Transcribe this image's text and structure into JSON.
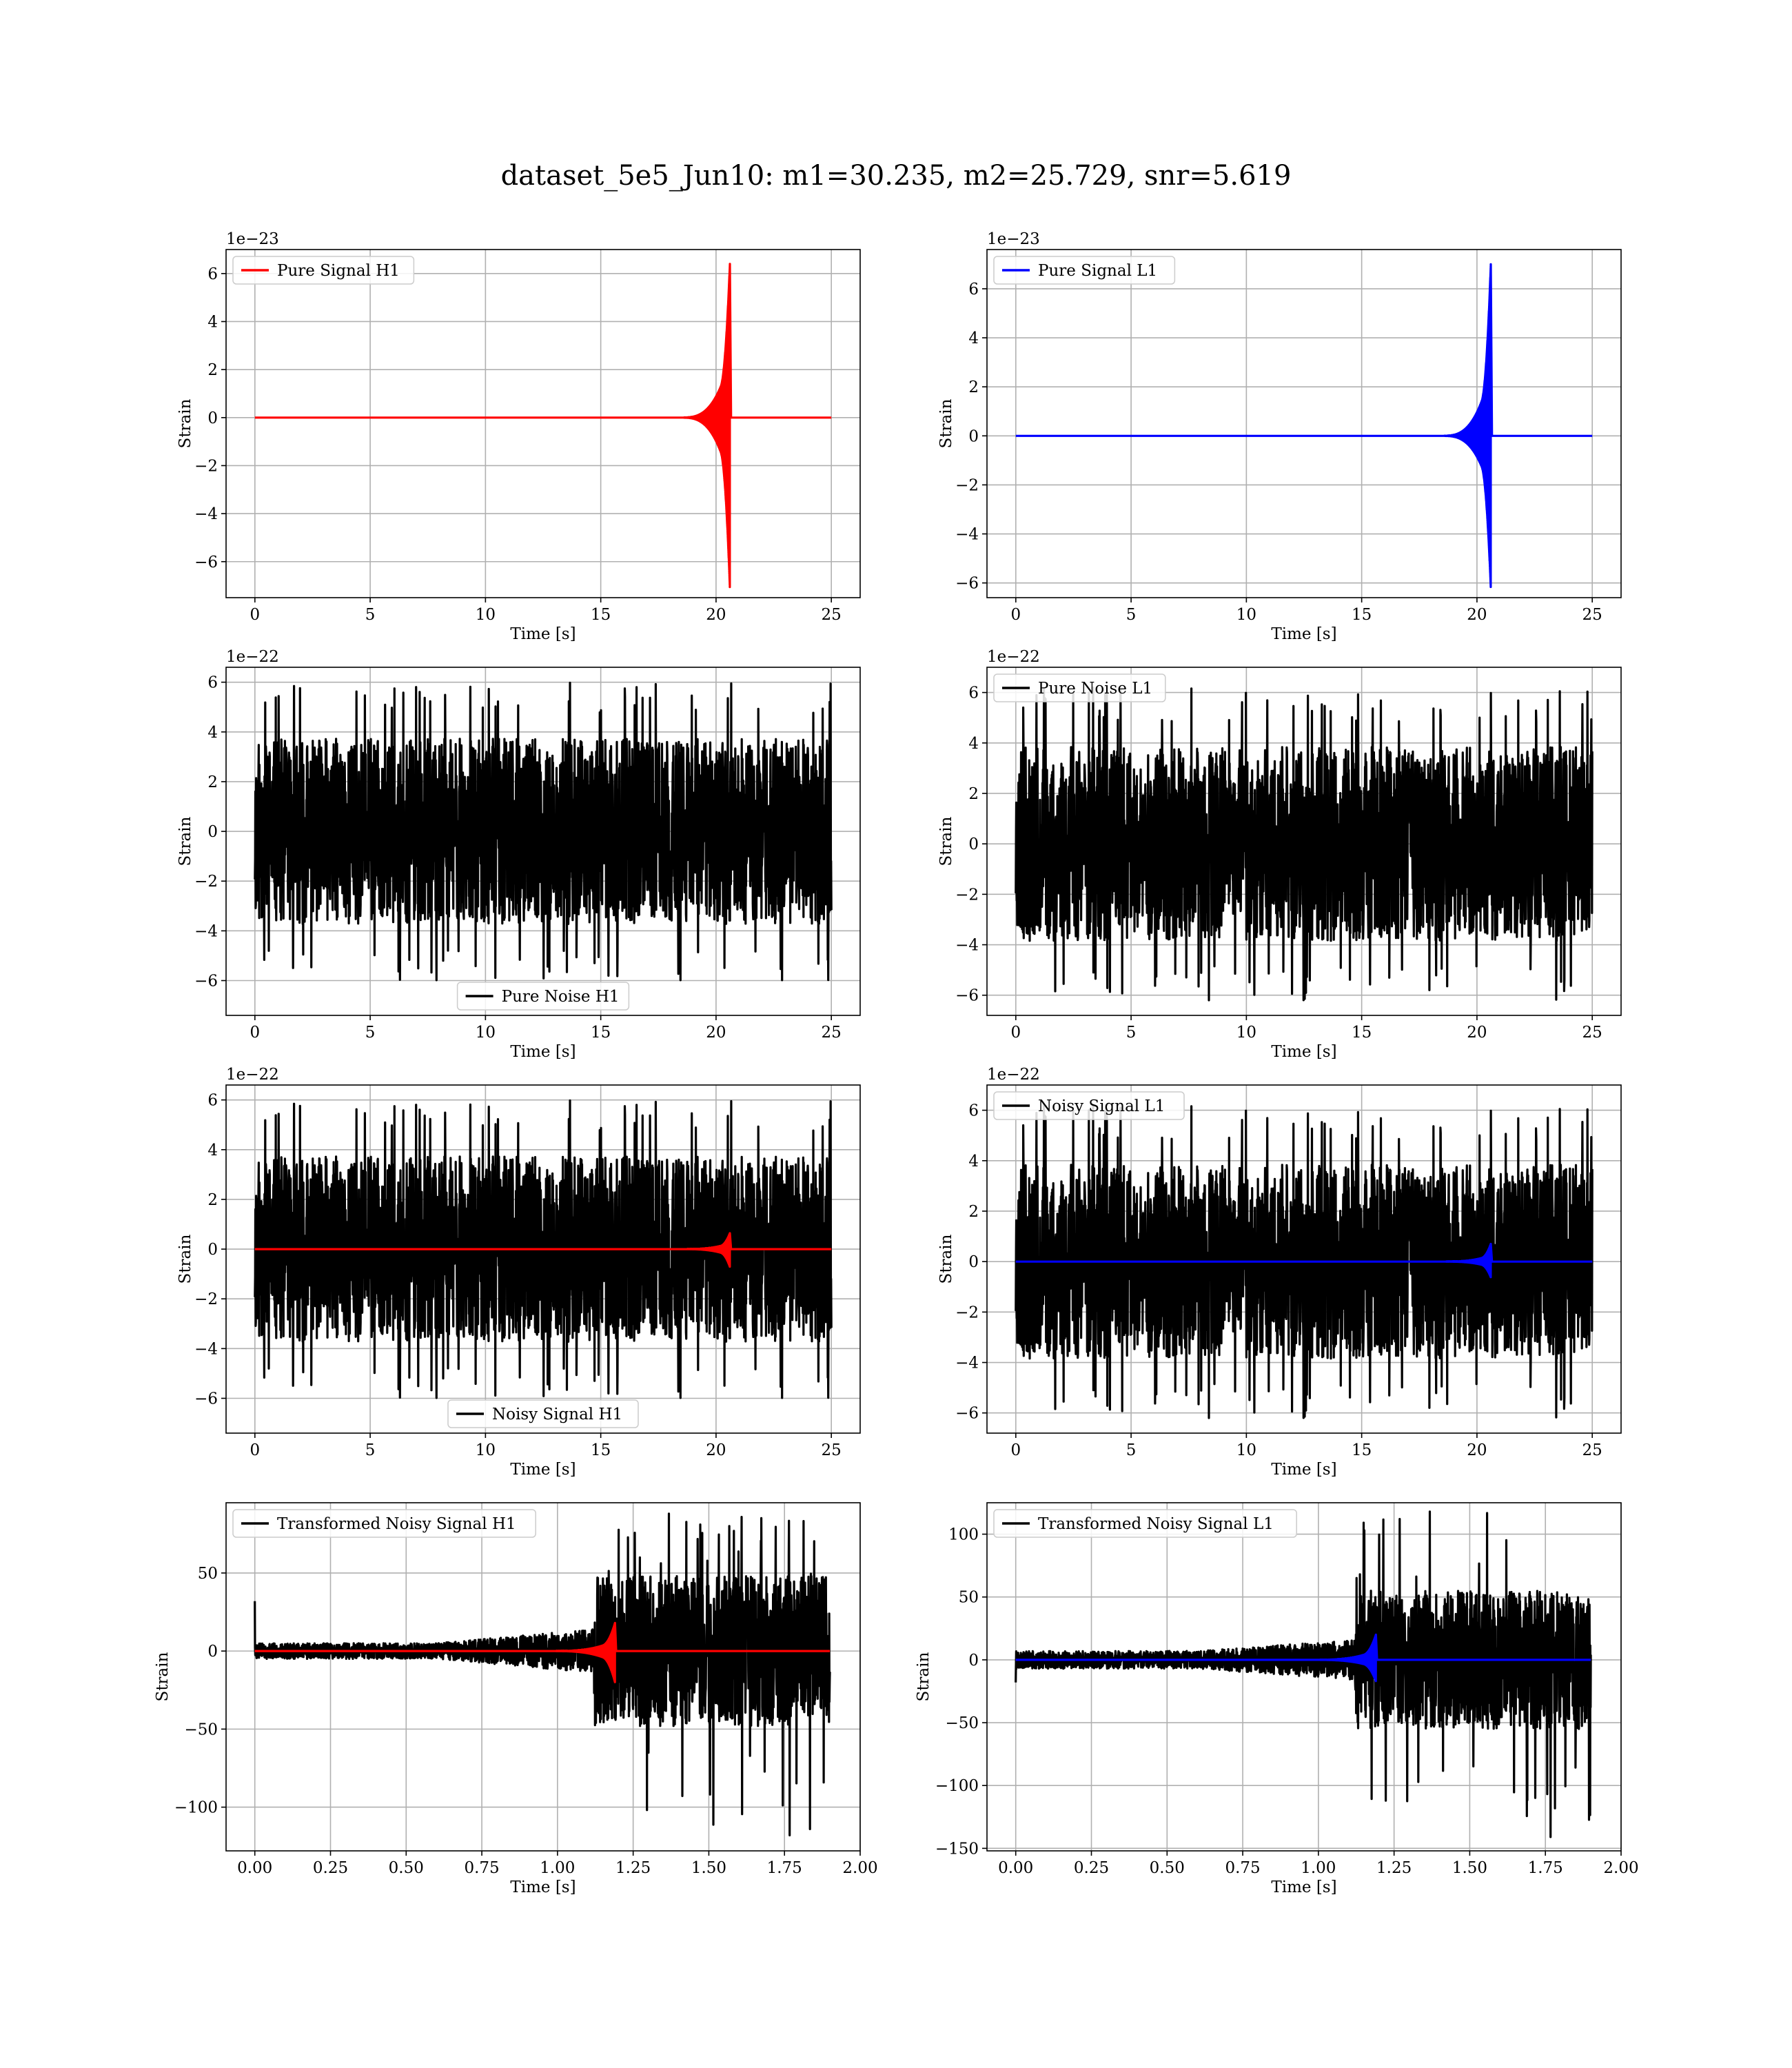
{
  "figure_title": "dataset_5e5_Jun10: m1=30.235, m2=25.729, snr=5.619",
  "colors": {
    "signal_h1": "#ff0000",
    "signal_l1": "#0000ff",
    "noise": "#000000",
    "grid": "#b0b0b0"
  },
  "chart_data": [
    {
      "id": "pure-signal-h1",
      "type": "line",
      "title": "",
      "xlabel": "Time [s]",
      "ylabel": "Strain",
      "offset_text": "1e−23",
      "xlim": [
        -1.25,
        26.25
      ],
      "ylim": [
        -7.5,
        7.0
      ],
      "xticks": [
        0,
        5,
        10,
        15,
        20,
        25
      ],
      "xtick_labels": [
        "0",
        "5",
        "10",
        "15",
        "20",
        "25"
      ],
      "yticks": [
        -6,
        -4,
        -2,
        0,
        2,
        4,
        6
      ],
      "ytick_labels": [
        "−6",
        "−4",
        "−2",
        "0",
        "2",
        "4",
        "6"
      ],
      "grid": true,
      "legend_position": "upper left",
      "series": [
        {
          "name": "Pure Signal H1",
          "color": "#ff0000",
          "kind": "chirp",
          "t_start": 0,
          "t_end": 25,
          "t_merge": 20.6,
          "peak_pos": 6.4,
          "peak_neg": -7.1,
          "width": 2.2
        }
      ]
    },
    {
      "id": "pure-signal-l1",
      "type": "line",
      "title": "",
      "xlabel": "Time [s]",
      "ylabel": "Strain",
      "offset_text": "1e−23",
      "xlim": [
        -1.25,
        26.25
      ],
      "ylim": [
        -6.6,
        7.6
      ],
      "xticks": [
        0,
        5,
        10,
        15,
        20,
        25
      ],
      "xtick_labels": [
        "0",
        "5",
        "10",
        "15",
        "20",
        "25"
      ],
      "yticks": [
        -6,
        -4,
        -2,
        0,
        2,
        4,
        6
      ],
      "ytick_labels": [
        "−6",
        "−4",
        "−2",
        "0",
        "2",
        "4",
        "6"
      ],
      "grid": true,
      "legend_position": "upper left",
      "series": [
        {
          "name": "Pure Signal L1",
          "color": "#0000ff",
          "kind": "chirp",
          "t_start": 0,
          "t_end": 25,
          "t_merge": 20.6,
          "peak_pos": 7.0,
          "peak_neg": -6.2,
          "width": 2.2
        }
      ]
    },
    {
      "id": "pure-noise-h1",
      "type": "line",
      "title": "",
      "xlabel": "Time [s]",
      "ylabel": "Strain",
      "offset_text": "1e−22",
      "xlim": [
        -1.25,
        26.25
      ],
      "ylim": [
        -7.4,
        6.6
      ],
      "xticks": [
        0,
        5,
        10,
        15,
        20,
        25
      ],
      "xtick_labels": [
        "0",
        "5",
        "10",
        "15",
        "20",
        "25"
      ],
      "yticks": [
        -6,
        -4,
        -2,
        0,
        2,
        4,
        6
      ],
      "ytick_labels": [
        "−6",
        "−4",
        "−2",
        "0",
        "2",
        "4",
        "6"
      ],
      "grid": true,
      "legend_position": "lower center",
      "series": [
        {
          "name": "Pure Noise H1",
          "color": "#000000",
          "kind": "noise",
          "t_start": 0,
          "t_end": 25,
          "amplitude": 6.0,
          "seed": 11
        }
      ]
    },
    {
      "id": "pure-noise-l1",
      "type": "line",
      "title": "",
      "xlabel": "Time [s]",
      "ylabel": "Strain",
      "offset_text": "1e−22",
      "xlim": [
        -1.25,
        26.25
      ],
      "ylim": [
        -6.8,
        7.0
      ],
      "xticks": [
        0,
        5,
        10,
        15,
        20,
        25
      ],
      "xtick_labels": [
        "0",
        "5",
        "10",
        "15",
        "20",
        "25"
      ],
      "yticks": [
        -6,
        -4,
        -2,
        0,
        2,
        4,
        6
      ],
      "ytick_labels": [
        "−6",
        "−4",
        "−2",
        "0",
        "2",
        "4",
        "6"
      ],
      "grid": true,
      "legend_position": "upper left",
      "series": [
        {
          "name": "Pure Noise L1",
          "color": "#000000",
          "kind": "noise",
          "t_start": 0,
          "t_end": 25,
          "amplitude": 6.2,
          "seed": 23
        }
      ]
    },
    {
      "id": "noisy-signal-h1",
      "type": "line",
      "title": "",
      "xlabel": "Time [s]",
      "ylabel": "Strain",
      "offset_text": "1e−22",
      "xlim": [
        -1.25,
        26.25
      ],
      "ylim": [
        -7.4,
        6.6
      ],
      "xticks": [
        0,
        5,
        10,
        15,
        20,
        25
      ],
      "xtick_labels": [
        "0",
        "5",
        "10",
        "15",
        "20",
        "25"
      ],
      "yticks": [
        -6,
        -4,
        -2,
        0,
        2,
        4,
        6
      ],
      "ytick_labels": [
        "−6",
        "−4",
        "−2",
        "0",
        "2",
        "4",
        "6"
      ],
      "grid": true,
      "legend_position": "lower center",
      "series": [
        {
          "name": "Noisy Signal H1",
          "color": "#000000",
          "kind": "noise",
          "t_start": 0,
          "t_end": 25,
          "amplitude": 6.0,
          "seed": 11
        },
        {
          "name": "",
          "color": "#ff0000",
          "kind": "chirp",
          "t_start": 0,
          "t_end": 25,
          "t_merge": 20.6,
          "peak_pos": 0.64,
          "peak_neg": -0.71,
          "width": 2.2
        }
      ]
    },
    {
      "id": "noisy-signal-l1",
      "type": "line",
      "title": "",
      "xlabel": "Time [s]",
      "ylabel": "Strain",
      "offset_text": "1e−22",
      "xlim": [
        -1.25,
        26.25
      ],
      "ylim": [
        -6.8,
        7.0
      ],
      "xticks": [
        0,
        5,
        10,
        15,
        20,
        25
      ],
      "xtick_labels": [
        "0",
        "5",
        "10",
        "15",
        "20",
        "25"
      ],
      "yticks": [
        -6,
        -4,
        -2,
        0,
        2,
        4,
        6
      ],
      "ytick_labels": [
        "−6",
        "−4",
        "−2",
        "0",
        "2",
        "4",
        "6"
      ],
      "grid": true,
      "legend_position": "upper left",
      "series": [
        {
          "name": "Noisy Signal L1",
          "color": "#000000",
          "kind": "noise",
          "t_start": 0,
          "t_end": 25,
          "amplitude": 6.2,
          "seed": 23
        },
        {
          "name": "",
          "color": "#0000ff",
          "kind": "chirp",
          "t_start": 0,
          "t_end": 25,
          "t_merge": 20.6,
          "peak_pos": 0.7,
          "peak_neg": -0.62,
          "width": 2.2
        }
      ]
    },
    {
      "id": "transformed-noisy-signal-h1",
      "type": "line",
      "title": "",
      "xlabel": "Time [s]",
      "ylabel": "Strain",
      "offset_text": "",
      "xlim": [
        -0.095,
        2.0
      ],
      "ylim": [
        -128,
        95
      ],
      "xticks": [
        0,
        0.25,
        0.5,
        0.75,
        1.0,
        1.25,
        1.5,
        1.75,
        2.0
      ],
      "xtick_labels": [
        "0.00",
        "0.25",
        "0.50",
        "0.75",
        "1.00",
        "1.25",
        "1.50",
        "1.75",
        "2.00"
      ],
      "yticks": [
        -100,
        -50,
        0,
        50
      ],
      "ytick_labels": [
        "−100",
        "−50",
        "0",
        "50"
      ],
      "grid": true,
      "legend_position": "upper left",
      "series": [
        {
          "name": "Transformed Noisy Signal H1",
          "color": "#000000",
          "kind": "whitened",
          "t_start": 0,
          "t_end": 1.9,
          "t_jump": 1.12,
          "amp_low": 5,
          "amp_mid": 14,
          "amp_high": 48,
          "max": 88,
          "min": -118,
          "spike_t0": 32,
          "seed": 5
        },
        {
          "name": "",
          "color": "#ff0000",
          "kind": "chirp",
          "t_start": 0,
          "t_end": 1.9,
          "t_merge": 1.19,
          "peak_pos": 18,
          "peak_neg": -20,
          "width": 0.22
        }
      ]
    },
    {
      "id": "transformed-noisy-signal-l1",
      "type": "line",
      "title": "",
      "xlabel": "Time [s]",
      "ylabel": "Strain",
      "offset_text": "",
      "xlim": [
        -0.095,
        2.0
      ],
      "ylim": [
        -152,
        125
      ],
      "xticks": [
        0,
        0.25,
        0.5,
        0.75,
        1.0,
        1.25,
        1.5,
        1.75,
        2.0
      ],
      "xtick_labels": [
        "0.00",
        "0.25",
        "0.50",
        "0.75",
        "1.00",
        "1.25",
        "1.50",
        "1.75",
        "2.00"
      ],
      "yticks": [
        -150,
        -100,
        -50,
        0,
        50,
        100
      ],
      "ytick_labels": [
        "−150",
        "−100",
        "−50",
        "0",
        "50",
        "100"
      ],
      "grid": true,
      "legend_position": "upper left",
      "series": [
        {
          "name": "Transformed Noisy Signal L1",
          "color": "#000000",
          "kind": "whitened",
          "t_start": 0,
          "t_end": 1.9,
          "t_jump": 1.12,
          "amp_low": 7,
          "amp_mid": 16,
          "amp_high": 55,
          "max": 118,
          "min": -141,
          "spike_t0": -18,
          "seed": 9
        },
        {
          "name": "",
          "color": "#0000ff",
          "kind": "chirp",
          "t_start": 0,
          "t_end": 1.9,
          "t_merge": 1.19,
          "peak_pos": 20,
          "peak_neg": -17,
          "width": 0.22
        }
      ]
    }
  ]
}
